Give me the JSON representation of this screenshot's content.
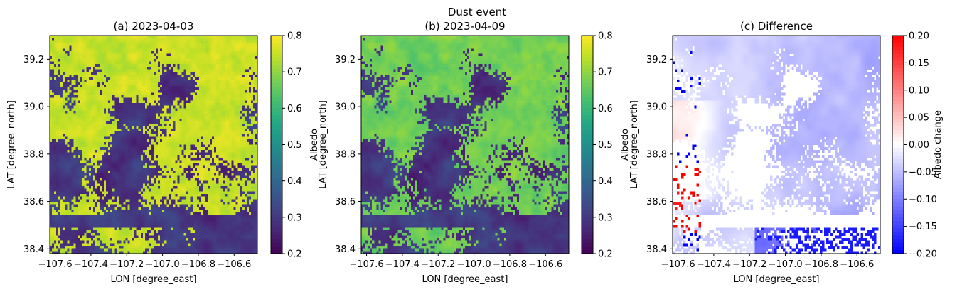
{
  "figure": {
    "suptitle": "Dust event"
  },
  "chart_data": [
    {
      "type": "heatmap",
      "title": "(a) 2023-04-03",
      "xlabel": "LON [degree_east]",
      "ylabel": "LAT [degree_north]",
      "xlim": [
        -107.63,
        -106.47
      ],
      "ylim": [
        38.38,
        39.3
      ],
      "xticks": [
        -107.6,
        -107.4,
        -107.2,
        -107.0,
        -106.8,
        -106.6
      ],
      "xtick_labels": [
        "−107.6",
        "−107.4",
        "−107.2",
        "−107.0",
        "−106.8",
        "−106.6"
      ],
      "yticks": [
        38.4,
        38.6,
        38.8,
        39.0,
        39.2
      ],
      "ytick_labels": [
        "38.4",
        "38.6",
        "38.8",
        "39.0",
        "39.2"
      ],
      "colormap": "viridis",
      "colorbar": {
        "label": "Albedo",
        "range": [
          0.2,
          0.8
        ],
        "ticks": [
          0.2,
          0.3,
          0.4,
          0.5,
          0.6,
          0.7,
          0.8
        ],
        "tick_labels": [
          "0.2",
          "0.3",
          "0.4",
          "0.5",
          "0.6",
          "0.7",
          "0.8"
        ]
      },
      "grid": false
    },
    {
      "type": "heatmap",
      "title": "(b) 2023-04-09",
      "xlabel": "LON [degree_east]",
      "ylabel": "LAT [degree_north]",
      "xlim": [
        -107.63,
        -106.47
      ],
      "ylim": [
        38.38,
        39.3
      ],
      "xticks": [
        -107.6,
        -107.4,
        -107.2,
        -107.0,
        -106.8,
        -106.6
      ],
      "xtick_labels": [
        "−107.6",
        "−107.4",
        "−107.2",
        "−107.0",
        "−106.8",
        "−106.6"
      ],
      "yticks": [
        38.4,
        38.6,
        38.8,
        39.0,
        39.2
      ],
      "ytick_labels": [
        "38.4",
        "38.6",
        "38.8",
        "39.0",
        "39.2"
      ],
      "colormap": "viridis",
      "colorbar": {
        "label": "Albedo",
        "range": [
          0.2,
          0.8
        ],
        "ticks": [
          0.2,
          0.3,
          0.4,
          0.5,
          0.6,
          0.7,
          0.8
        ],
        "tick_labels": [
          "0.2",
          "0.3",
          "0.4",
          "0.5",
          "0.6",
          "0.7",
          "0.8"
        ]
      },
      "grid": false
    },
    {
      "type": "heatmap",
      "title": "(c) Difference",
      "xlabel": "LON [degree_east]",
      "ylabel": "LAT [degree_north]",
      "xlim": [
        -107.63,
        -106.47
      ],
      "ylim": [
        38.38,
        39.3
      ],
      "xticks": [
        -107.6,
        -107.4,
        -107.2,
        -107.0,
        -106.8,
        -106.6
      ],
      "xtick_labels": [
        "−107.6",
        "−107.4",
        "−107.2",
        "−107.0",
        "−106.8",
        "−106.6"
      ],
      "yticks": [
        38.4,
        38.6,
        38.8,
        39.0,
        39.2
      ],
      "ytick_labels": [
        "38.4",
        "38.6",
        "38.8",
        "39.0",
        "39.2"
      ],
      "colormap": "bwr",
      "colorbar": {
        "label": "Albedo change",
        "range": [
          -0.2,
          0.2
        ],
        "ticks": [
          -0.2,
          -0.15,
          -0.1,
          -0.05,
          0.0,
          0.05,
          0.1,
          0.15,
          0.2
        ],
        "tick_labels": [
          "−0.20",
          "−0.15",
          "−0.10",
          "−0.05",
          "0.00",
          "0.05",
          "0.10",
          "0.15",
          "0.20"
        ]
      },
      "grid": false
    }
  ]
}
